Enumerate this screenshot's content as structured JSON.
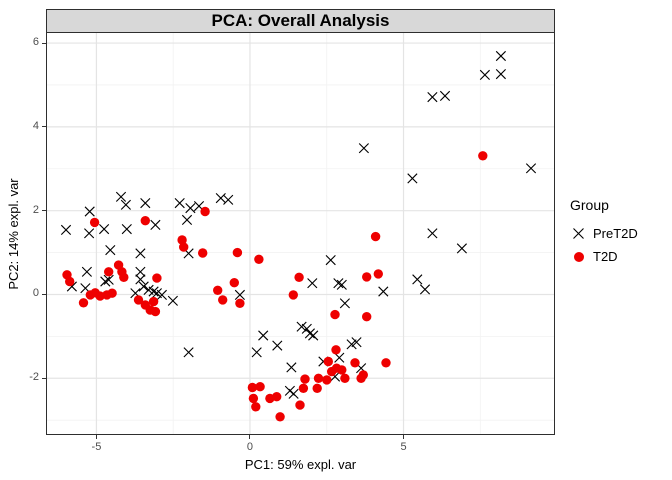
{
  "chart_data": {
    "type": "scatter",
    "title": "PCA: Overall Analysis",
    "xlabel": "PC1: 59% expl. var",
    "ylabel": "PC2: 14% expl. var",
    "xlim": [
      -6.61,
      9.9
    ],
    "ylim": [
      -3.33,
      6.24
    ],
    "x_ticks": [
      -5,
      0,
      5
    ],
    "y_ticks": [
      6,
      4,
      2,
      0,
      -2
    ],
    "x_minor": [
      -2.5,
      2.5,
      7.5
    ],
    "y_minor": [
      5,
      3,
      1,
      -1,
      -3
    ],
    "grid": true,
    "colors": {
      "pret2d": "#000000",
      "t2d": "#EE0000",
      "grid_major": "#E4E4E4",
      "grid_minor": "#F2F2F2",
      "axis_text": "#4D4D4D",
      "strip_bg": "#D8D8D8",
      "panel_border": "#2E2E2E"
    },
    "legend": {
      "title": "Group",
      "position": "right",
      "entries": [
        {
          "label": "PreT2D",
          "marker": "x",
          "color": "#000000"
        },
        {
          "label": "T2D",
          "marker": "circle",
          "color": "#EE0000"
        }
      ]
    },
    "series": [
      {
        "name": "PreT2D",
        "marker": "x",
        "color": "#000000",
        "points": [
          [
            8.17,
            5.69
          ],
          [
            7.65,
            5.24
          ],
          [
            8.17,
            5.26
          ],
          [
            5.94,
            4.71
          ],
          [
            6.35,
            4.74
          ],
          [
            3.71,
            3.49
          ],
          [
            9.15,
            3.01
          ],
          [
            5.29,
            2.77
          ],
          [
            -4.2,
            2.33
          ],
          [
            -4.04,
            2.14
          ],
          [
            -3.41,
            2.18
          ],
          [
            -2.29,
            2.18
          ],
          [
            -1.94,
            2.06
          ],
          [
            -1.66,
            2.11
          ],
          [
            -0.95,
            2.3
          ],
          [
            -0.71,
            2.26
          ],
          [
            -5.22,
            1.98
          ],
          [
            -5.99,
            1.54
          ],
          [
            -5.24,
            1.46
          ],
          [
            -4.75,
            1.56
          ],
          [
            -4.01,
            1.56
          ],
          [
            -3.08,
            1.66
          ],
          [
            -2.05,
            1.78
          ],
          [
            5.94,
            1.46
          ],
          [
            6.9,
            1.1
          ],
          [
            -4.55,
            1.06
          ],
          [
            -3.57,
            0.98
          ],
          [
            -2.0,
            0.98
          ],
          [
            2.63,
            0.82
          ],
          [
            -5.31,
            0.54
          ],
          [
            -4.6,
            0.35
          ],
          [
            -3.57,
            0.54
          ],
          [
            -3.57,
            0.36
          ],
          [
            -5.8,
            0.19
          ],
          [
            -5.36,
            0.15
          ],
          [
            -4.71,
            0.31
          ],
          [
            -3.73,
            0.03
          ],
          [
            -3.46,
            0.19
          ],
          [
            -3.3,
            0.11
          ],
          [
            -3.14,
            0.07
          ],
          [
            -3.03,
            0.03
          ],
          [
            -2.87,
            -0.01
          ],
          [
            -2.51,
            -0.15
          ],
          [
            -0.33,
            -0.01
          ],
          [
            2.03,
            0.27
          ],
          [
            2.88,
            0.27
          ],
          [
            2.99,
            0.23
          ],
          [
            3.09,
            -0.21
          ],
          [
            4.34,
            0.07
          ],
          [
            5.45,
            0.36
          ],
          [
            5.7,
            0.12
          ],
          [
            1.68,
            -0.77
          ],
          [
            1.85,
            -0.82
          ],
          [
            1.95,
            -0.93
          ],
          [
            2.06,
            -0.98
          ],
          [
            0.43,
            -0.98
          ],
          [
            0.89,
            -1.22
          ],
          [
            0.22,
            -1.38
          ],
          [
            3.31,
            -1.19
          ],
          [
            3.47,
            -1.14
          ],
          [
            1.35,
            -1.74
          ],
          [
            2.39,
            -1.6
          ],
          [
            2.91,
            -1.51
          ],
          [
            3.62,
            -1.76
          ],
          [
            2.77,
            -1.96
          ],
          [
            -2.0,
            -1.38
          ],
          [
            1.3,
            -2.3
          ],
          [
            1.42,
            -2.37
          ]
        ]
      },
      {
        "name": "T2D",
        "marker": "circle",
        "color": "#EE0000",
        "points": [
          [
            7.58,
            3.31
          ],
          [
            4.09,
            1.38
          ],
          [
            -5.06,
            1.72
          ],
          [
            -3.41,
            1.76
          ],
          [
            -1.46,
            1.98
          ],
          [
            -2.21,
            1.3
          ],
          [
            -2.16,
            1.13
          ],
          [
            -1.54,
            0.99
          ],
          [
            -0.41,
            1.0
          ],
          [
            0.29,
            0.84
          ],
          [
            -5.96,
            0.47
          ],
          [
            -5.87,
            0.31
          ],
          [
            -4.6,
            0.54
          ],
          [
            -4.28,
            0.7
          ],
          [
            -4.17,
            0.54
          ],
          [
            -4.11,
            0.41
          ],
          [
            -3.03,
            0.39
          ],
          [
            3.8,
            0.42
          ],
          [
            4.18,
            0.49
          ],
          [
            -1.05,
            0.1
          ],
          [
            -0.51,
            0.28
          ],
          [
            -5.2,
            -0.01
          ],
          [
            -5.04,
            0.04
          ],
          [
            -5.42,
            -0.2
          ],
          [
            -4.88,
            -0.04
          ],
          [
            -4.66,
            -0.01
          ],
          [
            -4.49,
            0.03
          ],
          [
            -0.89,
            -0.13
          ],
          [
            -0.33,
            -0.21
          ],
          [
            1.41,
            -0.01
          ],
          [
            1.6,
            0.41
          ],
          [
            -3.63,
            -0.13
          ],
          [
            -3.41,
            -0.25
          ],
          [
            -3.25,
            -0.37
          ],
          [
            -3.08,
            -0.41
          ],
          [
            -3.14,
            -0.17
          ],
          [
            2.77,
            -0.48
          ],
          [
            3.8,
            -0.53
          ],
          [
            2.8,
            -1.32
          ],
          [
            2.55,
            -1.6
          ],
          [
            3.42,
            -1.63
          ],
          [
            4.43,
            -1.63
          ],
          [
            2.66,
            -1.84
          ],
          [
            2.82,
            -1.76
          ],
          [
            2.99,
            -1.8
          ],
          [
            3.09,
            -2.0
          ],
          [
            3.62,
            -2.0
          ],
          [
            3.69,
            -1.92
          ],
          [
            2.5,
            -2.04
          ],
          [
            2.23,
            -2.0
          ],
          [
            2.19,
            -2.24
          ],
          [
            1.79,
            -2.02
          ],
          [
            1.74,
            -2.24
          ],
          [
            1.63,
            -2.64
          ],
          [
            0.98,
            -2.92
          ],
          [
            0.87,
            -2.44
          ],
          [
            0.65,
            -2.48
          ],
          [
            0.33,
            -2.2
          ],
          [
            0.08,
            -2.22
          ],
          [
            0.11,
            -2.48
          ],
          [
            0.19,
            -2.68
          ]
        ]
      }
    ]
  }
}
